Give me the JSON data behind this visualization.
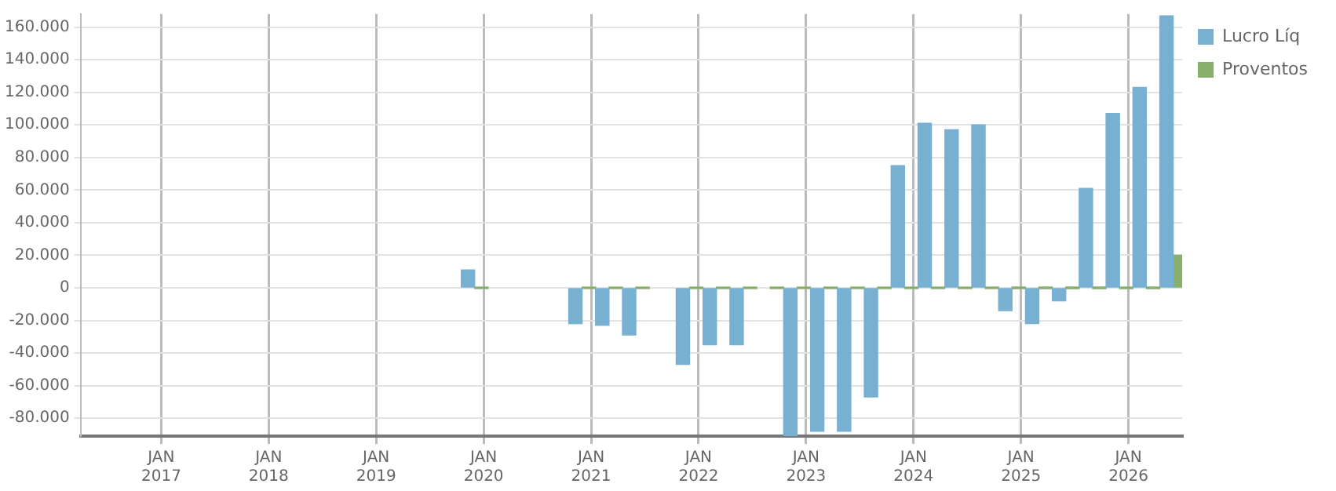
{
  "chart_data": {
    "type": "bar",
    "x": [
      "2019-12",
      "2020-12",
      "2021-03",
      "2021-06",
      "2021-12",
      "2022-03",
      "2022-06",
      "2022-09",
      "2022-12",
      "2023-03",
      "2023-06",
      "2023-09",
      "2023-12",
      "2024-03",
      "2024-06",
      "2024-09",
      "2024-12",
      "2025-03",
      "2025-06",
      "2025-09",
      "2025-12",
      "2026-03",
      "2026-06"
    ],
    "series": [
      {
        "name": "Lucro Líq",
        "color": "#78b0d2",
        "values": [
          11000,
          -22000,
          -23000,
          -29000,
          -47000,
          -35000,
          -35000,
          null,
          -91000,
          -88000,
          -88000,
          -67000,
          75000,
          101000,
          97000,
          100000,
          -14000,
          -22000,
          -8000,
          61000,
          107000,
          123000,
          167000
        ]
      },
      {
        "name": "Proventos",
        "color": "#88b06c",
        "values": [
          0,
          0,
          0,
          0,
          0,
          0,
          0,
          0,
          0,
          0,
          0,
          0,
          0,
          0,
          0,
          0,
          0,
          0,
          0,
          0,
          0,
          0,
          20000
        ]
      }
    ],
    "xlim": [
      "2016-04",
      "2026-07"
    ],
    "xticks": [
      {
        "value": "2017-01",
        "label": "JAN\n2017"
      },
      {
        "value": "2018-01",
        "label": "JAN\n2018"
      },
      {
        "value": "2019-01",
        "label": "JAN\n2019"
      },
      {
        "value": "2020-01",
        "label": "JAN\n2020"
      },
      {
        "value": "2021-01",
        "label": "JAN\n2021"
      },
      {
        "value": "2022-01",
        "label": "JAN\n2022"
      },
      {
        "value": "2023-01",
        "label": "JAN\n2023"
      },
      {
        "value": "2024-01",
        "label": "JAN\n2024"
      },
      {
        "value": "2025-01",
        "label": "JAN\n2025"
      },
      {
        "value": "2026-01",
        "label": "JAN\n2026"
      }
    ],
    "ylim": [
      -91000,
      168000
    ],
    "yticks": [
      {
        "value": -80000,
        "label": "-80.000"
      },
      {
        "value": -60000,
        "label": "-60.000"
      },
      {
        "value": -40000,
        "label": "-40.000"
      },
      {
        "value": -20000,
        "label": "-20.000"
      },
      0,
      {
        "value": 20000,
        "label": "20.000"
      },
      {
        "value": 40000,
        "label": "40.000"
      },
      {
        "value": 60000,
        "label": "60.000"
      },
      {
        "value": 80000,
        "label": "80.000"
      },
      {
        "value": 100000,
        "label": "100.000"
      },
      {
        "value": 120000,
        "label": "120.000"
      },
      {
        "value": 140000,
        "label": "140.000"
      },
      {
        "value": 160000,
        "label": "160.000"
      }
    ],
    "grid": true,
    "legend": "top right"
  }
}
